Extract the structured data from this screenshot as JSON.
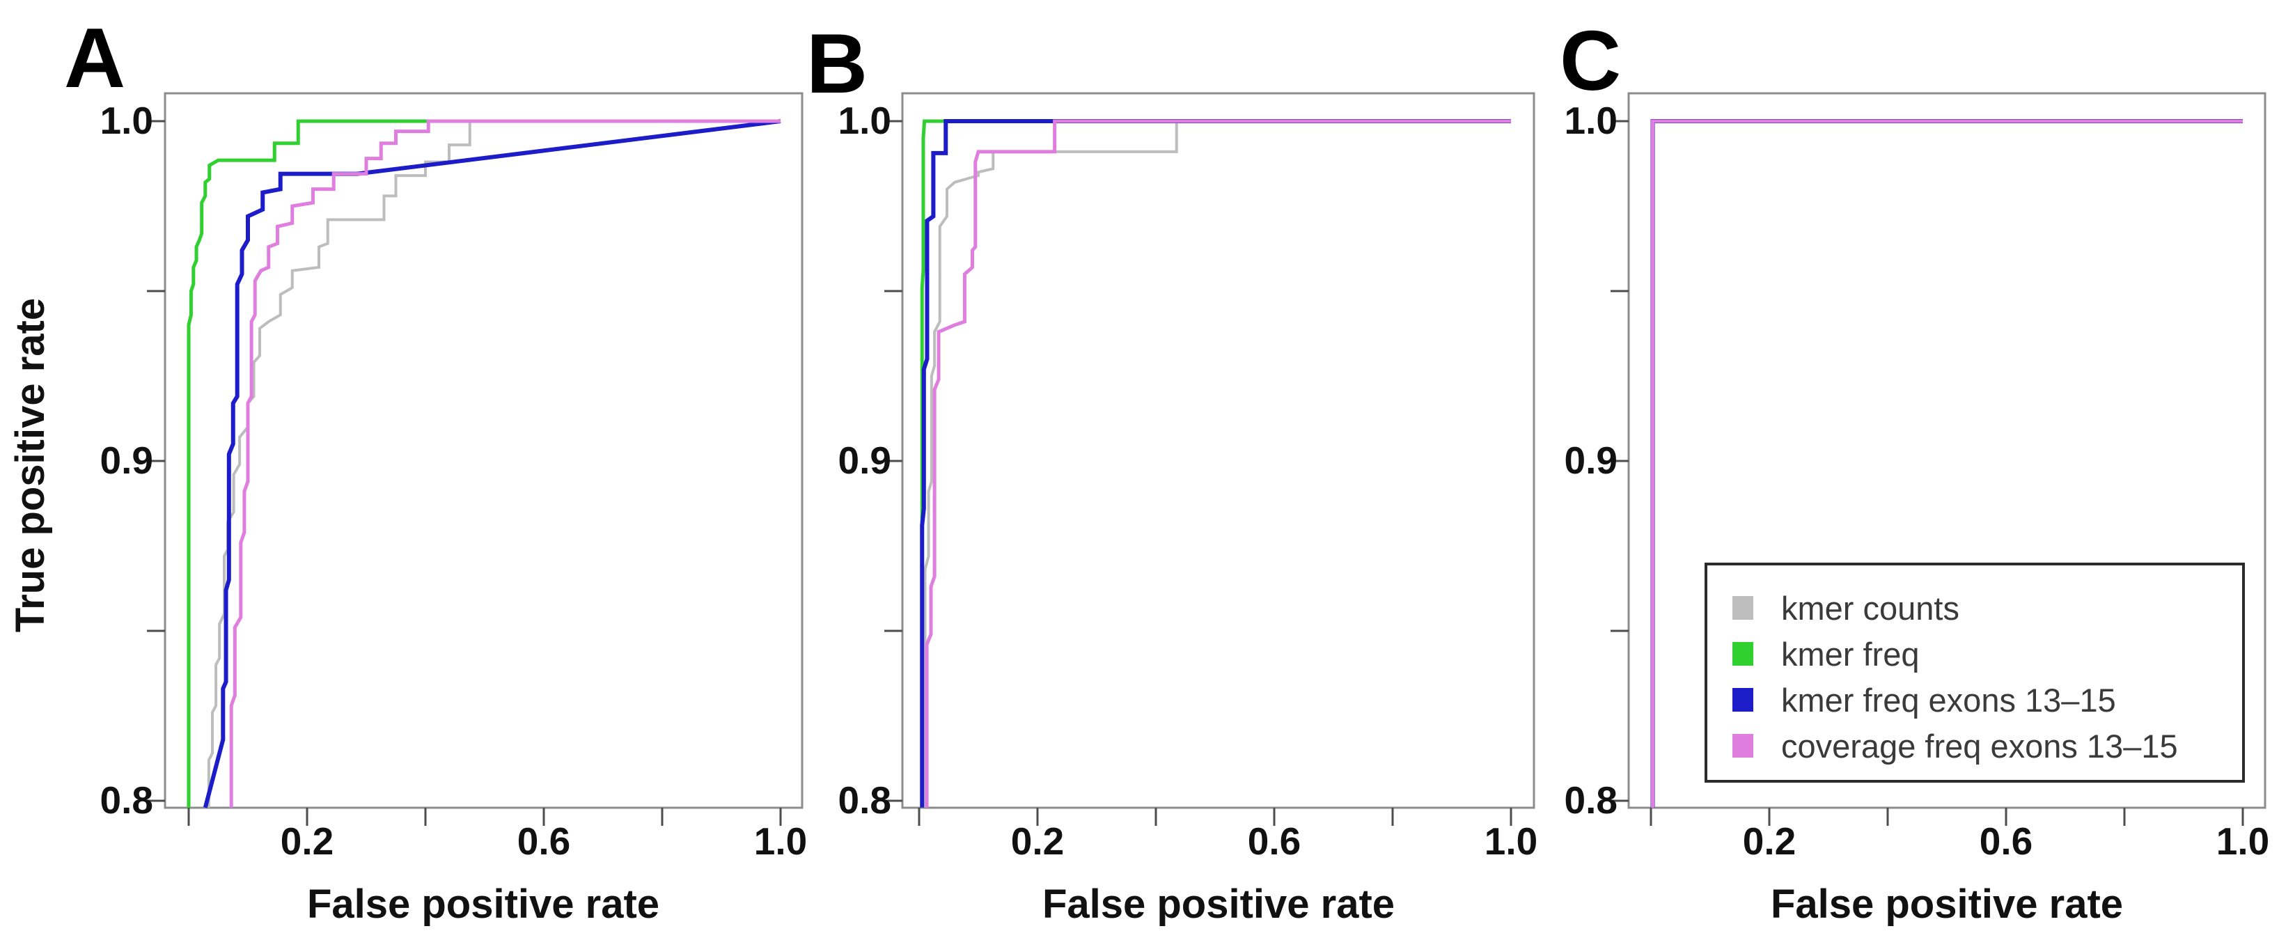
{
  "figure_title": "ROC curves figure with panels A, B, C",
  "panels": {
    "a": "A",
    "b": "B",
    "c": "C"
  },
  "axes": {
    "x_label": "False positive rate",
    "y_label": "True positive rate",
    "x_tick_labels": [
      "0.2",
      "0.6",
      "1.0"
    ],
    "y_tick_labels": [
      "1.0",
      "0.9",
      "0.8"
    ]
  },
  "legend": {
    "entries": [
      {
        "label": "kmer counts",
        "color": "#bdbdbd"
      },
      {
        "label": "kmer freq",
        "color": "#2fd02f"
      },
      {
        "label": "kmer freq exons 13–15",
        "color": "#1c1cc9"
      },
      {
        "label": "coverage freq exons 13–15",
        "color": "#e07ee0"
      }
    ]
  },
  "style": {
    "background": "#ffffff",
    "axis_color": "#8c8c8c",
    "tick_color": "#4d4d4d",
    "text_color": "#111111",
    "legend_border_color": "#2b2b2b"
  },
  "chart_data": [
    {
      "panel": "A",
      "title": "A",
      "type": "line",
      "subtype": "roc-step-curves",
      "xlabel": "False positive rate",
      "ylabel": "True positive rate",
      "xlim": [
        0,
        1
      ],
      "ylim": [
        0.8,
        1.0
      ],
      "x_ticks": [
        0.2,
        0.6,
        1.0
      ],
      "y_ticks": [
        1.0,
        0.9,
        0.8
      ],
      "x_ticks_all": [
        0.0,
        0.2,
        0.4,
        0.6,
        0.8,
        1.0
      ],
      "y_ticks_all": [
        0.8,
        0.85,
        0.9,
        0.95,
        1.0
      ],
      "grid": false,
      "series": [
        {
          "name": "kmer counts",
          "color": "#bdbdbd",
          "width": 4,
          "points": [
            [
              0.034,
              0.798
            ],
            [
              0.034,
              0.812
            ],
            [
              0.04,
              0.814
            ],
            [
              0.04,
              0.826
            ],
            [
              0.046,
              0.828
            ],
            [
              0.046,
              0.84
            ],
            [
              0.052,
              0.842
            ],
            [
              0.052,
              0.852
            ],
            [
              0.06,
              0.855
            ],
            [
              0.06,
              0.872
            ],
            [
              0.066,
              0.874
            ],
            [
              0.066,
              0.882
            ],
            [
              0.076,
              0.885
            ],
            [
              0.076,
              0.896
            ],
            [
              0.086,
              0.899
            ],
            [
              0.086,
              0.907
            ],
            [
              0.1,
              0.91
            ],
            [
              0.1,
              0.917
            ],
            [
              0.11,
              0.919
            ],
            [
              0.11,
              0.929
            ],
            [
              0.12,
              0.931
            ],
            [
              0.12,
              0.939
            ],
            [
              0.135,
              0.941
            ],
            [
              0.155,
              0.943
            ],
            [
              0.155,
              0.949
            ],
            [
              0.175,
              0.951
            ],
            [
              0.175,
              0.956
            ],
            [
              0.22,
              0.957
            ],
            [
              0.22,
              0.963
            ],
            [
              0.235,
              0.964
            ],
            [
              0.235,
              0.971
            ],
            [
              0.33,
              0.971
            ],
            [
              0.33,
              0.978
            ],
            [
              0.35,
              0.978
            ],
            [
              0.35,
              0.984
            ],
            [
              0.4,
              0.984
            ],
            [
              0.4,
              0.988
            ],
            [
              0.44,
              0.988
            ],
            [
              0.44,
              0.993
            ],
            [
              0.475,
              0.993
            ],
            [
              0.475,
              1.0
            ],
            [
              1.0,
              1.0
            ]
          ]
        },
        {
          "name": "kmer freq",
          "color": "#2fd02f",
          "width": 5,
          "points": [
            [
              0.0,
              0.798
            ],
            [
              0.0,
              0.94
            ],
            [
              0.004,
              0.943
            ],
            [
              0.004,
              0.95
            ],
            [
              0.008,
              0.952
            ],
            [
              0.008,
              0.957
            ],
            [
              0.013,
              0.959
            ],
            [
              0.013,
              0.963
            ],
            [
              0.018,
              0.965
            ],
            [
              0.022,
              0.967
            ],
            [
              0.022,
              0.976
            ],
            [
              0.028,
              0.978
            ],
            [
              0.028,
              0.982
            ],
            [
              0.035,
              0.983
            ],
            [
              0.035,
              0.987
            ],
            [
              0.05,
              0.9885
            ],
            [
              0.145,
              0.9885
            ],
            [
              0.145,
              0.9935
            ],
            [
              0.185,
              0.9935
            ],
            [
              0.185,
              1.0
            ],
            [
              1.0,
              1.0
            ]
          ]
        },
        {
          "name": "kmer freq exons 13–15",
          "color": "#1c1cc9",
          "width": 6,
          "points": [
            [
              0.028,
              0.798
            ],
            [
              0.058,
              0.818
            ],
            [
              0.058,
              0.833
            ],
            [
              0.063,
              0.835
            ],
            [
              0.063,
              0.862
            ],
            [
              0.068,
              0.865
            ],
            [
              0.068,
              0.902
            ],
            [
              0.075,
              0.905
            ],
            [
              0.075,
              0.917
            ],
            [
              0.082,
              0.919
            ],
            [
              0.082,
              0.952
            ],
            [
              0.09,
              0.955
            ],
            [
              0.09,
              0.962
            ],
            [
              0.1,
              0.965
            ],
            [
              0.1,
              0.972
            ],
            [
              0.125,
              0.974
            ],
            [
              0.125,
              0.979
            ],
            [
              0.155,
              0.98
            ],
            [
              0.155,
              0.9845
            ],
            [
              0.285,
              0.9845
            ],
            [
              1.0,
              1.0
            ]
          ]
        },
        {
          "name": "coverage freq exons 13–15",
          "color": "#e07ee0",
          "width": 5,
          "points": [
            [
              0.072,
              0.798
            ],
            [
              0.072,
              0.828
            ],
            [
              0.078,
              0.831
            ],
            [
              0.078,
              0.851
            ],
            [
              0.088,
              0.854
            ],
            [
              0.088,
              0.876
            ],
            [
              0.094,
              0.879
            ],
            [
              0.094,
              0.891
            ],
            [
              0.1,
              0.894
            ],
            [
              0.1,
              0.917
            ],
            [
              0.106,
              0.919
            ],
            [
              0.106,
              0.941
            ],
            [
              0.112,
              0.943
            ],
            [
              0.112,
              0.953
            ],
            [
              0.122,
              0.956
            ],
            [
              0.135,
              0.957
            ],
            [
              0.135,
              0.963
            ],
            [
              0.15,
              0.964
            ],
            [
              0.15,
              0.969
            ],
            [
              0.175,
              0.97
            ],
            [
              0.175,
              0.975
            ],
            [
              0.21,
              0.976
            ],
            [
              0.21,
              0.98
            ],
            [
              0.245,
              0.98
            ],
            [
              0.245,
              0.9845
            ],
            [
              0.3,
              0.9845
            ],
            [
              0.3,
              0.989
            ],
            [
              0.325,
              0.989
            ],
            [
              0.325,
              0.9935
            ],
            [
              0.35,
              0.9935
            ],
            [
              0.35,
              0.997
            ],
            [
              0.405,
              0.997
            ],
            [
              0.405,
              1.0
            ],
            [
              1.0,
              1.0
            ]
          ]
        }
      ]
    },
    {
      "panel": "B",
      "title": "B",
      "type": "line",
      "subtype": "roc-step-curves",
      "xlabel": "False positive rate",
      "ylabel": "",
      "xlim": [
        0,
        1
      ],
      "ylim": [
        0.8,
        1.0
      ],
      "x_ticks": [
        0.2,
        0.6,
        1.0
      ],
      "y_ticks": [
        1.0,
        0.9,
        0.8
      ],
      "x_ticks_all": [
        0.0,
        0.2,
        0.4,
        0.6,
        0.8,
        1.0
      ],
      "y_ticks_all": [
        0.8,
        0.85,
        0.9,
        0.95,
        1.0
      ],
      "grid": false,
      "series": [
        {
          "name": "kmer counts",
          "color": "#bdbdbd",
          "width": 4,
          "points": [
            [
              0.01,
              0.798
            ],
            [
              0.01,
              0.868
            ],
            [
              0.016,
              0.872
            ],
            [
              0.016,
              0.891
            ],
            [
              0.021,
              0.894
            ],
            [
              0.021,
              0.925
            ],
            [
              0.026,
              0.928
            ],
            [
              0.026,
              0.938
            ],
            [
              0.035,
              0.941
            ],
            [
              0.035,
              0.969
            ],
            [
              0.047,
              0.972
            ],
            [
              0.047,
              0.98
            ],
            [
              0.06,
              0.982
            ],
            [
              0.1,
              0.984
            ],
            [
              0.1,
              0.985
            ],
            [
              0.125,
              0.986
            ],
            [
              0.125,
              0.991
            ],
            [
              0.435,
              0.991
            ],
            [
              0.435,
              1.0
            ],
            [
              1.0,
              1.0
            ]
          ]
        },
        {
          "name": "kmer freq",
          "color": "#2fd02f",
          "width": 5,
          "points": [
            [
              0.005,
              0.798
            ],
            [
              0.005,
              0.951
            ],
            [
              0.007,
              0.956
            ],
            [
              0.007,
              0.995
            ],
            [
              0.009,
              1.0
            ],
            [
              1.0,
              1.0
            ]
          ]
        },
        {
          "name": "kmer freq exons 13–15",
          "color": "#1c1cc9",
          "width": 6,
          "points": [
            [
              0.005,
              0.798
            ],
            [
              0.005,
              0.881
            ],
            [
              0.008,
              0.886
            ],
            [
              0.008,
              0.927
            ],
            [
              0.0135,
              0.93
            ],
            [
              0.0135,
              0.9707
            ],
            [
              0.024,
              0.972
            ],
            [
              0.024,
              0.9906
            ],
            [
              0.045,
              0.9906
            ],
            [
              0.045,
              1.0
            ],
            [
              1.0,
              1.0
            ]
          ]
        },
        {
          "name": "coverage freq exons 13–15",
          "color": "#e07ee0",
          "width": 5,
          "points": [
            [
              0.013,
              0.798
            ],
            [
              0.013,
              0.846
            ],
            [
              0.02,
              0.849
            ],
            [
              0.02,
              0.863
            ],
            [
              0.026,
              0.866
            ],
            [
              0.026,
              0.921
            ],
            [
              0.033,
              0.924
            ],
            [
              0.033,
              0.938
            ],
            [
              0.06,
              0.94
            ],
            [
              0.077,
              0.941
            ],
            [
              0.077,
              0.955
            ],
            [
              0.09,
              0.957
            ],
            [
              0.09,
              0.962
            ],
            [
              0.095,
              0.963
            ],
            [
              0.095,
              0.988
            ],
            [
              0.1,
              0.991
            ],
            [
              0.229,
              0.991
            ],
            [
              0.229,
              1.0
            ],
            [
              1.0,
              1.0
            ]
          ]
        }
      ]
    },
    {
      "panel": "C",
      "title": "C",
      "type": "line",
      "subtype": "roc-step-curves",
      "xlabel": "False positive rate",
      "ylabel": "",
      "xlim": [
        0,
        1
      ],
      "ylim": [
        0.8,
        1.0
      ],
      "x_ticks": [
        0.2,
        0.6,
        1.0
      ],
      "y_ticks": [
        1.0,
        0.9,
        0.8
      ],
      "x_ticks_all": [
        0.0,
        0.2,
        0.4,
        0.6,
        0.8,
        1.0
      ],
      "y_ticks_all": [
        0.8,
        0.85,
        0.9,
        0.95,
        1.0
      ],
      "grid": false,
      "legend_position": "bottom-right-inside",
      "series": [
        {
          "name": "kmer counts",
          "color": "#bdbdbd",
          "width": 4,
          "points": [
            [
              0.003,
              0.798
            ],
            [
              0.003,
              1.0
            ],
            [
              1.0,
              1.0
            ]
          ]
        },
        {
          "name": "kmer freq",
          "color": "#2fd02f",
          "width": 5,
          "points": [
            [
              0.003,
              0.798
            ],
            [
              0.003,
              1.0
            ],
            [
              1.0,
              1.0
            ]
          ]
        },
        {
          "name": "kmer freq exons 13–15",
          "color": "#1c1cc9",
          "width": 6,
          "points": [
            [
              0.003,
              0.798
            ],
            [
              0.003,
              1.0
            ],
            [
              1.0,
              1.0
            ]
          ]
        },
        {
          "name": "coverage freq exons 13–15",
          "color": "#e07ee0",
          "width": 5,
          "points": [
            [
              0.003,
              0.798
            ],
            [
              0.003,
              1.0
            ],
            [
              1.0,
              1.0
            ]
          ]
        }
      ]
    }
  ]
}
